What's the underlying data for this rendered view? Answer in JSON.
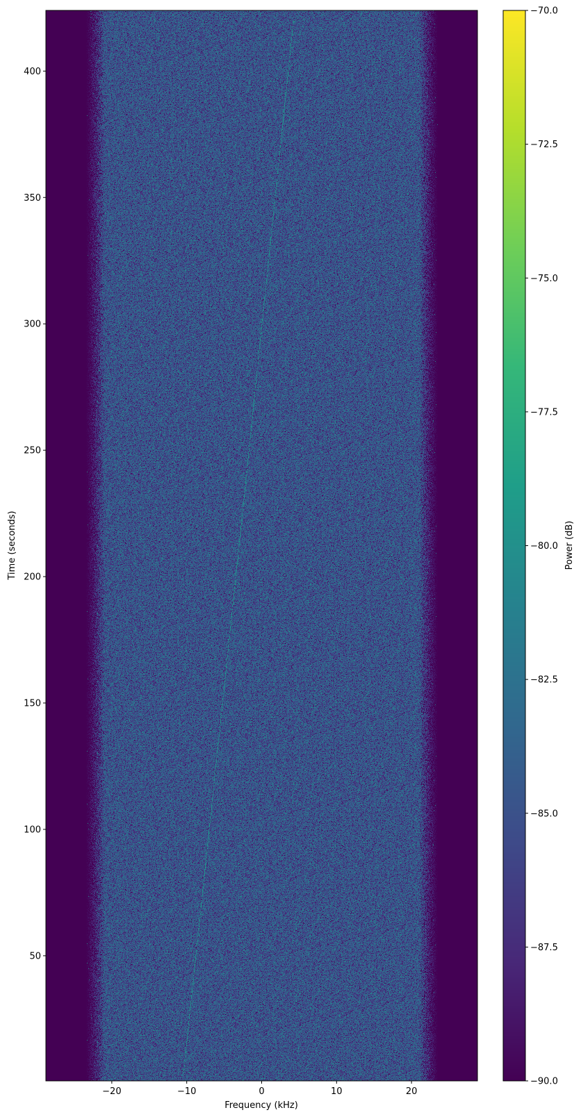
{
  "chart_data": {
    "type": "heatmap",
    "title": "",
    "xlabel": "Frequency (kHz)",
    "ylabel": "Time (seconds)",
    "colorbar_label": "Power (dB)",
    "colormap": "viridis",
    "xlim": [
      -28.8,
      28.8
    ],
    "ylim": [
      0.5,
      424
    ],
    "clim": [
      -90,
      -70
    ],
    "xticks": [
      -20,
      -10,
      0,
      10,
      20
    ],
    "xtick_labels": [
      "−20",
      "−10",
      "0",
      "10",
      "20"
    ],
    "yticks": [
      50,
      100,
      150,
      200,
      250,
      300,
      350,
      400
    ],
    "ytick_labels": [
      "50",
      "100",
      "150",
      "200",
      "250",
      "300",
      "350",
      "400"
    ],
    "cticks": [
      -90,
      -87.5,
      -85,
      -82.5,
      -80,
      -77.5,
      -75,
      -72.5,
      -70
    ],
    "ctick_labels": [
      "−90.0",
      "−87.5",
      "−85.0",
      "−82.5",
      "−80.0",
      "−77.5",
      "−75.0",
      "−72.5",
      "−70.0"
    ],
    "noise_floor_db": [
      -90,
      -83
    ],
    "noise_band_khz": [
      -22.5,
      22.5
    ],
    "signal_trace": {
      "points": [
        {
          "time": 3,
          "freq": -10.5
        },
        {
          "time": 200,
          "freq": -3.5
        },
        {
          "time": 420,
          "freq": 4.2
        }
      ],
      "power_db": -80
    },
    "grid": false
  }
}
